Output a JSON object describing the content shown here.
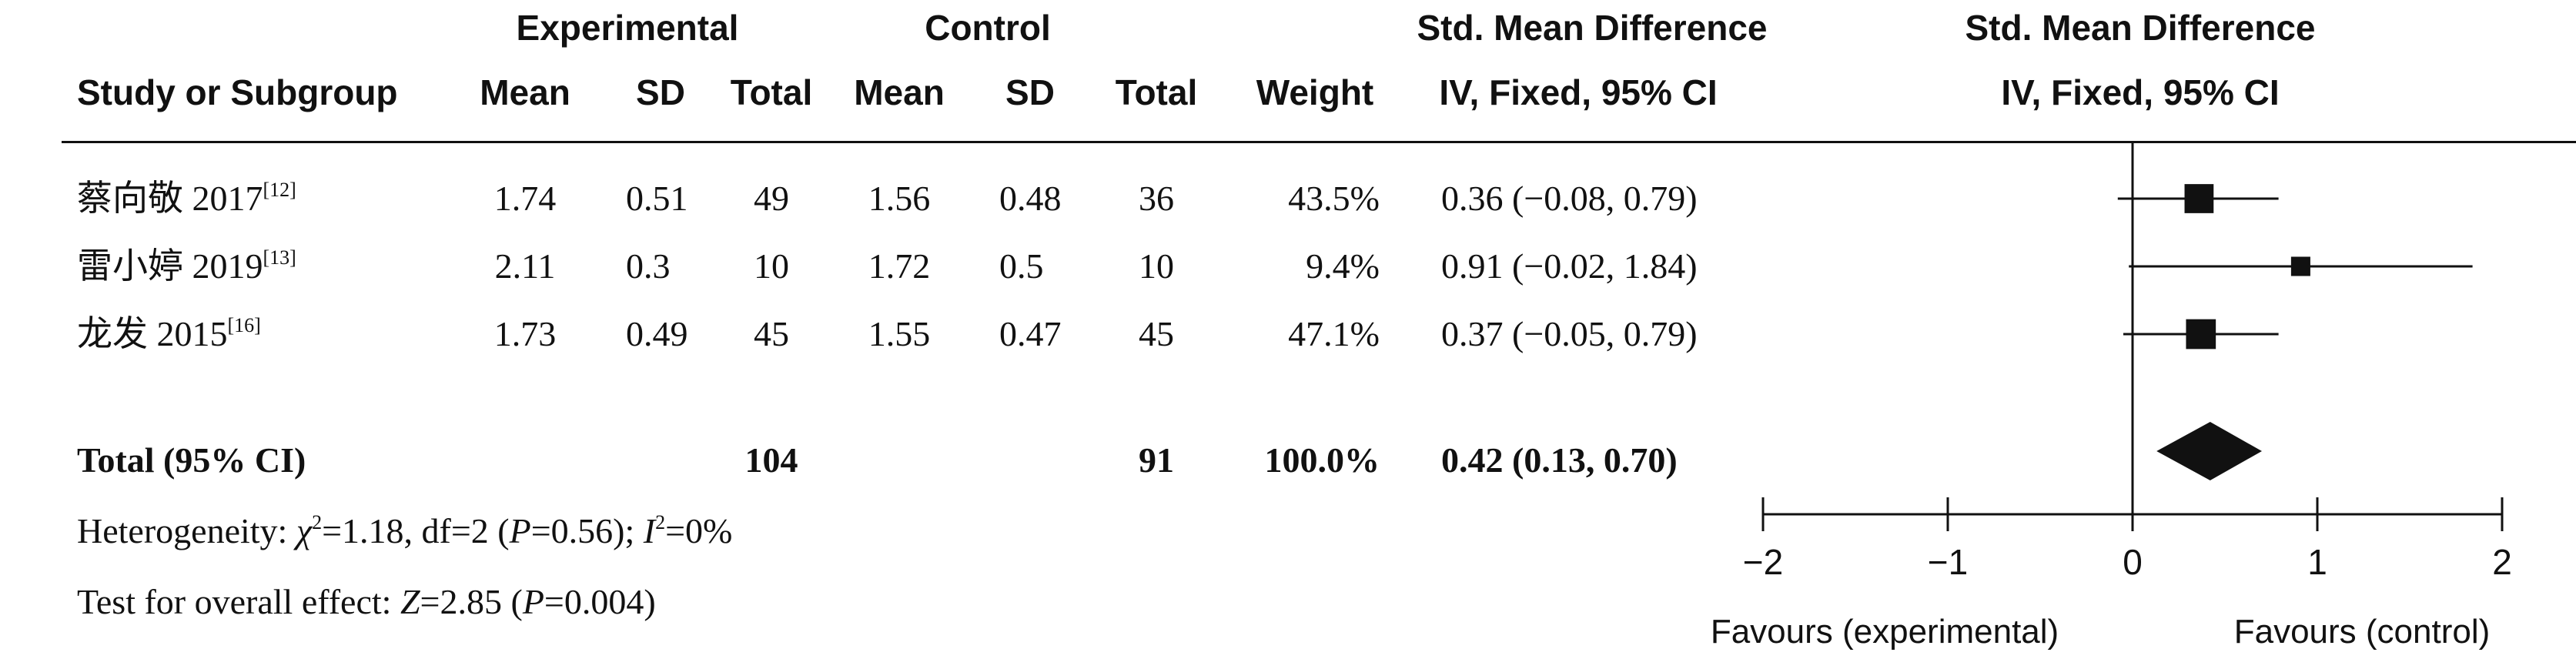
{
  "headers": {
    "group_experimental": "Experimental",
    "group_control": "Control",
    "smd_left": "Std. Mean Difference",
    "smd_right": "Std. Mean Difference",
    "study": "Study or Subgroup",
    "exp_mean": "Mean",
    "exp_sd": "SD",
    "exp_total": "Total",
    "ctl_mean": "Mean",
    "ctl_sd": "SD",
    "ctl_total": "Total",
    "weight": "Weight",
    "method_left": "IV, Fixed, 95% CI",
    "method_right": "IV, Fixed, 95% CI"
  },
  "studies": [
    {
      "name": "蔡向敬 2017",
      "ref": "[12]",
      "exp_mean": "1.74",
      "exp_sd": "0.51",
      "exp_total": "49",
      "ctl_mean": "1.56",
      "ctl_sd": "0.48",
      "ctl_total": "36",
      "weight": "43.5%",
      "ci_text": "0.36 (−0.08, 0.79)"
    },
    {
      "name": "雷小婷 2019",
      "ref": "[13]",
      "exp_mean": "2.11",
      "exp_sd": "0.3",
      "exp_total": "10",
      "ctl_mean": "1.72",
      "ctl_sd": "0.5",
      "ctl_total": "10",
      "weight": "9.4%",
      "ci_text": "0.91 (−0.02, 1.84)"
    },
    {
      "name": "龙发 2015",
      "ref": "[16]",
      "exp_mean": "1.73",
      "exp_sd": "0.49",
      "exp_total": "45",
      "ctl_mean": "1.55",
      "ctl_sd": "0.47",
      "ctl_total": "45",
      "weight": "47.1%",
      "ci_text": "0.37 (−0.05, 0.79)"
    }
  ],
  "total": {
    "label": "Total (95% CI)",
    "exp_total": "104",
    "ctl_total": "91",
    "weight": "100.0%",
    "ci_text": "0.42 (0.13, 0.70)"
  },
  "footer": {
    "heterogeneity_prefix": "Heterogeneity: ",
    "chi_symbol": "χ",
    "chi_sup": "2",
    "chi_value": "=1.18, df=2 (",
    "p_symbol": "P",
    "p_value": "=0.56); ",
    "i_symbol": "I",
    "i_sup": "2",
    "i_value": "=0%",
    "overall_prefix": "Test for overall effect: ",
    "z_symbol": "Z",
    "z_value": "=2.85 (",
    "p2_symbol": "P",
    "p2_value": "=0.004)"
  },
  "axis": {
    "favours_left": "Favours (experimental)",
    "favours_right": "Favours (control)"
  },
  "chart_data": {
    "type": "forest",
    "xlim": [
      -2,
      2
    ],
    "ticks": [
      -2,
      -1,
      0,
      1,
      2
    ],
    "tick_labels": [
      "−2",
      "−1",
      "0",
      "1",
      "2"
    ],
    "studies": [
      {
        "estimate": 0.36,
        "lower": -0.08,
        "upper": 0.79,
        "weight": 43.5
      },
      {
        "estimate": 0.91,
        "lower": -0.02,
        "upper": 1.84,
        "weight": 9.4
      },
      {
        "estimate": 0.37,
        "lower": -0.05,
        "upper": 0.79,
        "weight": 47.1
      }
    ],
    "pooled": {
      "estimate": 0.42,
      "lower": 0.13,
      "upper": 0.7
    }
  }
}
